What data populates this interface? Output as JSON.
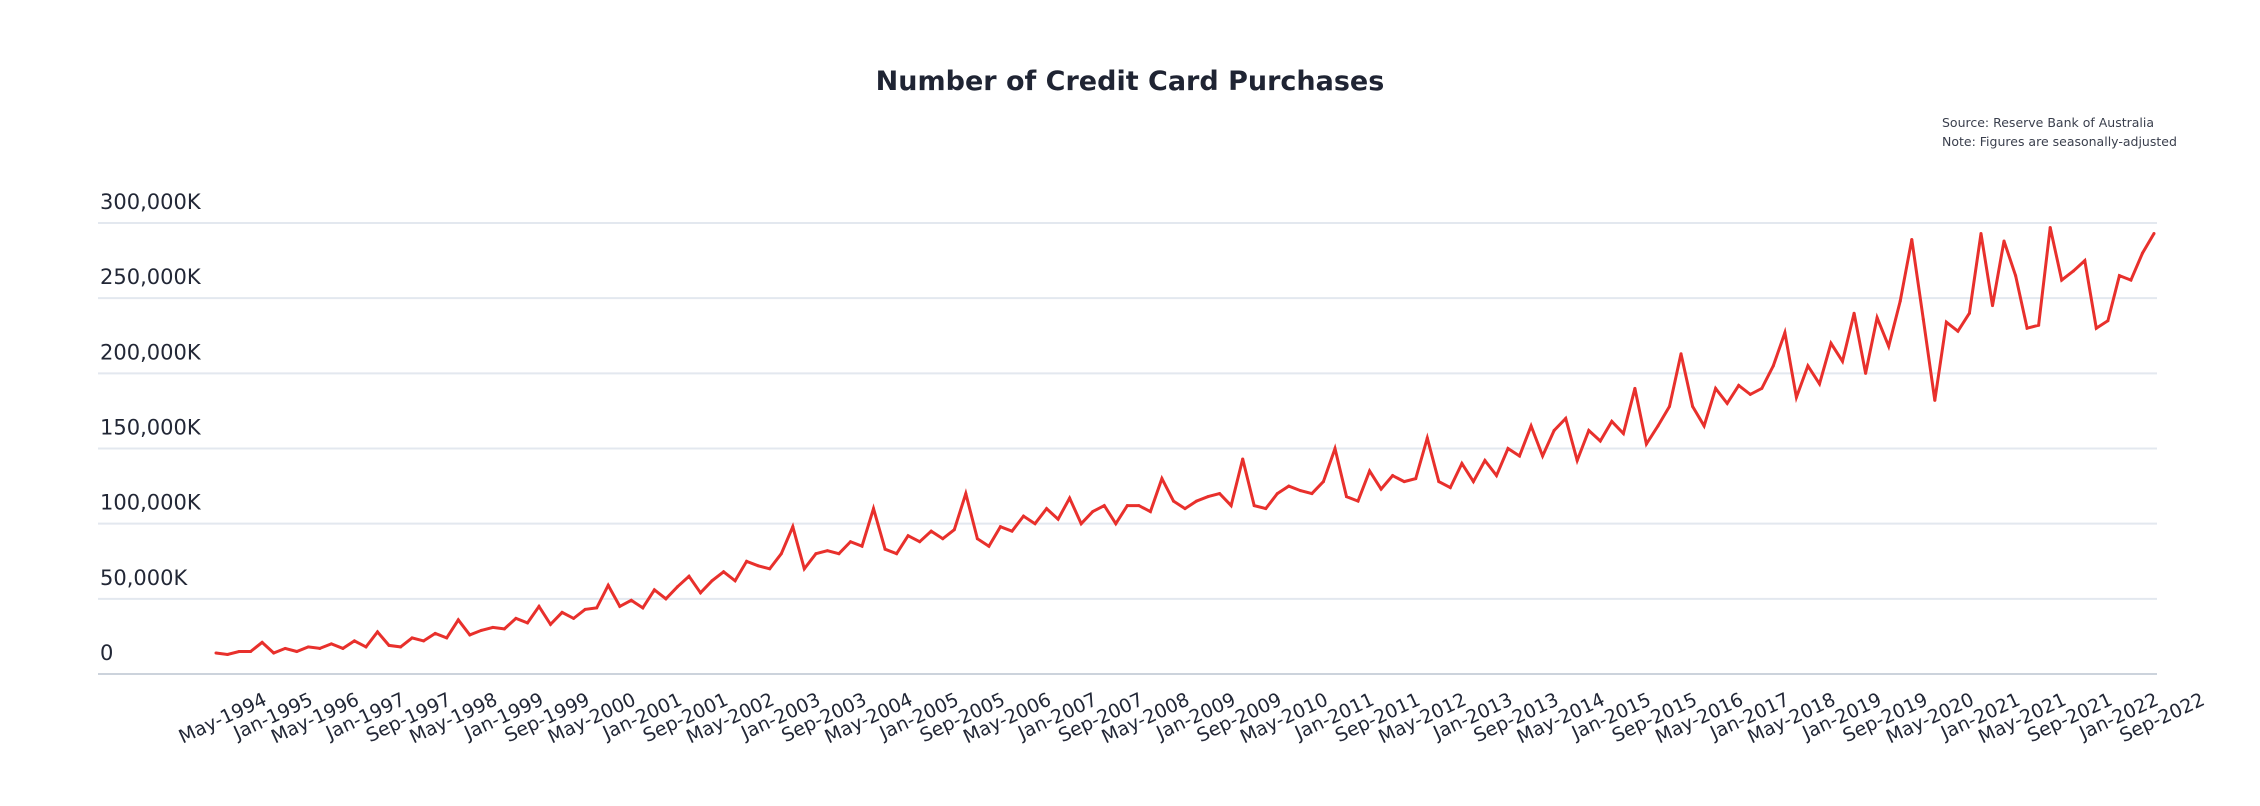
{
  "chart_data": {
    "type": "line",
    "title": "Number of Credit Card Purchases",
    "notes": [
      "Source: Reserve Bank of Australia",
      "Note: Figures are seasonally-adjusted"
    ],
    "xlabel": "",
    "ylabel": "",
    "ylim": [
      0,
      300000
    ],
    "y_ticks": [
      0,
      50000,
      100000,
      150000,
      200000,
      250000,
      300000
    ],
    "y_tick_labels": [
      "0",
      "50,000K",
      "100,000K",
      "150,000K",
      "200,000K",
      "250,000K",
      "300,000K"
    ],
    "x_tick_labels": [
      "May-1994",
      "Jan-1995",
      "May-1996",
      "Jan-1997",
      "Sep-1997",
      "May-1998",
      "Jan-1999",
      "Sep-1999",
      "May-2000",
      "Jan-2001",
      "Sep-2001",
      "May-2002",
      "Jan-2003",
      "Sep-2003",
      "May-2004",
      "Jan-2005",
      "Sep-2005",
      "May-2006",
      "Jan-2007",
      "Sep-2007",
      "May-2008",
      "Jan-2009",
      "Sep-2009",
      "May-2010",
      "Jan-2011",
      "Sep-2011",
      "May-2012",
      "Jan-2013",
      "Sep-2013",
      "May-2014",
      "Jan-2015",
      "Sep-2015",
      "May-2016",
      "Jan-2017",
      "May-2018",
      "Jan-2019",
      "Sep-2019",
      "May-2020",
      "Jan-2021",
      "May-2021",
      "Sep-2021",
      "Jan-2022",
      "Sep-2022"
    ],
    "points_per_tick": 4,
    "grid": true,
    "line_color": "#e8302c",
    "grid_color": "#e3e8ef",
    "values": [
      14000,
      13000,
      15000,
      15000,
      21000,
      14000,
      17000,
      15000,
      18000,
      17000,
      20000,
      17000,
      22000,
      18000,
      28000,
      19000,
      18000,
      24000,
      22000,
      27000,
      24000,
      36000,
      26000,
      29000,
      31000,
      30000,
      37000,
      34000,
      45000,
      33000,
      41000,
      37000,
      43000,
      44000,
      59000,
      45000,
      49000,
      44000,
      56000,
      50000,
      58000,
      65000,
      54000,
      62000,
      68000,
      62000,
      75000,
      72000,
      70000,
      80000,
      98000,
      70000,
      80000,
      82000,
      80000,
      88000,
      85000,
      110000,
      83000,
      80000,
      92000,
      88000,
      95000,
      90000,
      96000,
      120000,
      90000,
      85000,
      98000,
      95000,
      105000,
      100000,
      110000,
      103000,
      117000,
      100000,
      108000,
      112000,
      100000,
      112000,
      112000,
      108000,
      130000,
      115000,
      110000,
      115000,
      118000,
      120000,
      112000,
      143000,
      112000,
      110000,
      120000,
      125000,
      122000,
      120000,
      128000,
      150000,
      118000,
      115000,
      135000,
      123000,
      132000,
      128000,
      130000,
      157000,
      128000,
      124000,
      140000,
      128000,
      142000,
      132000,
      150000,
      145000,
      165000,
      145000,
      162000,
      170000,
      142000,
      162000,
      155000,
      168000,
      160000,
      190000,
      153000,
      165000,
      178000,
      213000,
      178000,
      165000,
      190000,
      180000,
      192000,
      186000,
      190000,
      205000,
      227000,
      184000,
      205000,
      193000,
      220000,
      208000,
      240000,
      200000,
      237000,
      218000,
      248000,
      289000,
      236000,
      182000,
      234000,
      228000,
      240000,
      293000,
      245000,
      288000,
      265000,
      230000,
      232000,
      297000,
      262000,
      268000,
      275000,
      230000,
      235000,
      265000,
      262000,
      280000,
      293000
    ]
  }
}
